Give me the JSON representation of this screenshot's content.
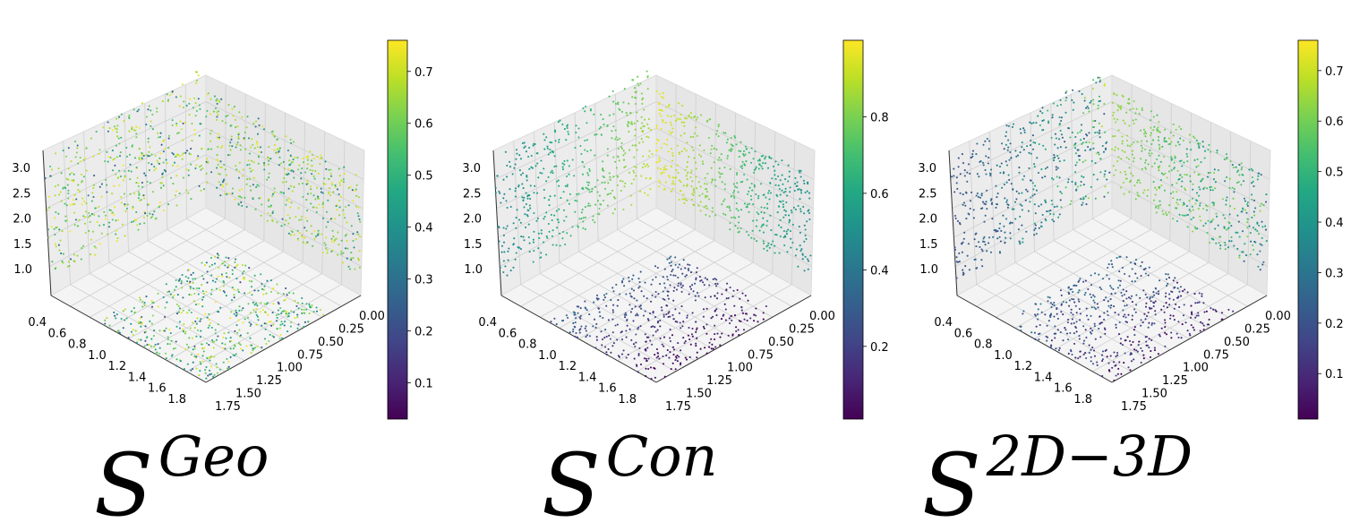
{
  "chart_data": [
    {
      "type": "scatter",
      "subtype": "3d-scatter",
      "caption": {
        "base": "S",
        "sup": "Geo"
      },
      "title": "",
      "xlabel": "",
      "ylabel": "",
      "zlabel": "",
      "x_ticks": [
        "0.00",
        "0.25",
        "0.50",
        "0.75",
        "1.00",
        "1.25",
        "1.50",
        "1.75"
      ],
      "y_ticks": [
        "0.4",
        "0.6",
        "0.8",
        "1.0",
        "1.2",
        "1.4",
        "1.6",
        "1.8"
      ],
      "z_ticks": [
        "1.0",
        "1.5",
        "2.0",
        "2.5",
        "3.0"
      ],
      "xlim": [
        0.0,
        1.8
      ],
      "ylim": [
        0.3,
        1.9
      ],
      "zlim": [
        0.6,
        3.1
      ],
      "colorbar": {
        "colormap": "viridis",
        "ticks": [
          "0.1",
          "0.2",
          "0.3",
          "0.4",
          "0.5",
          "0.6",
          "0.7"
        ],
        "range": [
          0.03,
          0.76
        ]
      },
      "color_pattern": "mostly-high"
    },
    {
      "type": "scatter",
      "subtype": "3d-scatter",
      "caption": {
        "base": "S",
        "sup": "Con"
      },
      "title": "",
      "xlabel": "",
      "ylabel": "",
      "zlabel": "",
      "x_ticks": [
        "0.00",
        "0.25",
        "0.50",
        "0.75",
        "1.00",
        "1.25",
        "1.50",
        "1.75"
      ],
      "y_ticks": [
        "0.4",
        "0.6",
        "0.8",
        "1.0",
        "1.2",
        "1.4",
        "1.6",
        "1.8"
      ],
      "z_ticks": [
        "1.0",
        "1.5",
        "2.0",
        "2.5",
        "3.0"
      ],
      "xlim": [
        0.0,
        1.8
      ],
      "ylim": [
        0.3,
        1.9
      ],
      "zlim": [
        0.6,
        3.1
      ],
      "colorbar": {
        "colormap": "viridis",
        "ticks": [
          "0.2",
          "0.4",
          "0.6",
          "0.8"
        ],
        "range": [
          0.01,
          1.0
        ]
      },
      "color_pattern": "gradient"
    },
    {
      "type": "scatter",
      "subtype": "3d-scatter",
      "caption": {
        "base": "S",
        "sup": "2D−3D"
      },
      "title": "",
      "xlabel": "",
      "ylabel": "",
      "zlabel": "",
      "x_ticks": [
        "0.00",
        "0.25",
        "0.50",
        "0.75",
        "1.00",
        "1.25",
        "1.50",
        "1.75"
      ],
      "y_ticks": [
        "0.4",
        "0.6",
        "0.8",
        "1.0",
        "1.2",
        "1.4",
        "1.6",
        "1.8"
      ],
      "z_ticks": [
        "1.0",
        "1.5",
        "2.0",
        "2.5",
        "3.0"
      ],
      "xlim": [
        0.0,
        1.8
      ],
      "ylim": [
        0.3,
        1.9
      ],
      "zlim": [
        0.6,
        3.1
      ],
      "colorbar": {
        "colormap": "viridis",
        "ticks": [
          "0.1",
          "0.2",
          "0.3",
          "0.4",
          "0.5",
          "0.6",
          "0.7"
        ],
        "range": [
          0.01,
          0.76
        ]
      },
      "color_pattern": "mixed"
    }
  ]
}
